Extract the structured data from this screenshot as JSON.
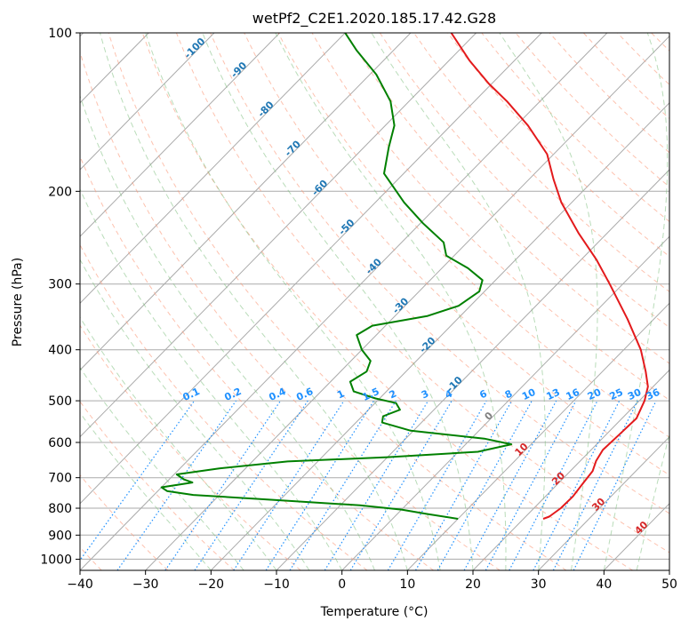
{
  "chart_data": {
    "type": "line",
    "title": "wetPf2_C2E1.2020.185.17.42.G28",
    "xlabel": "Temperature (°C)",
    "ylabel": "Pressure (hPa)",
    "xlim": [
      -40,
      50
    ],
    "ylim_hpa": [
      1050,
      100
    ],
    "y_scale": "log",
    "skew": true,
    "grid": true,
    "x_ticks": [
      "−40",
      "−30",
      "−20",
      "−10",
      "0",
      "10",
      "20",
      "30",
      "40",
      "50"
    ],
    "x_tick_values": [
      -40,
      -30,
      -20,
      -10,
      0,
      10,
      20,
      30,
      40,
      50
    ],
    "y_ticks": [
      "100",
      "200",
      "300",
      "400",
      "500",
      "600",
      "700",
      "800",
      "900",
      "1000"
    ],
    "y_tick_values": [
      100,
      200,
      300,
      400,
      500,
      600,
      700,
      800,
      900,
      1000
    ],
    "isotherm_labels": [
      {
        "text": "-100",
        "value": -100
      },
      {
        "text": "-90",
        "value": -90
      },
      {
        "text": "-80",
        "value": -80
      },
      {
        "text": "-70",
        "value": -70
      },
      {
        "text": "-60",
        "value": -60
      },
      {
        "text": "-50",
        "value": -50
      },
      {
        "text": "-40",
        "value": -40
      },
      {
        "text": "-30",
        "value": -30
      },
      {
        "text": "-20",
        "value": -20
      },
      {
        "text": "-10",
        "value": -10
      },
      {
        "text": "0",
        "value": 0
      },
      {
        "text": "10",
        "value": 10
      },
      {
        "text": "20",
        "value": 20
      },
      {
        "text": "30",
        "value": 30
      },
      {
        "text": "40",
        "value": 40
      }
    ],
    "mixing_ratio_labels": [
      "0.1",
      "0.2",
      "0.4",
      "0.6",
      "1",
      "1.5",
      "2",
      "3",
      "4",
      "6",
      "8",
      "10",
      "13",
      "16",
      "20",
      "25",
      "30",
      "36"
    ],
    "mixing_ratio_values": [
      0.1,
      0.2,
      0.4,
      0.6,
      1,
      1.5,
      2,
      3,
      4,
      6,
      8,
      10,
      13,
      16,
      20,
      25,
      30,
      36
    ],
    "series": [
      {
        "role": "temperature",
        "color": "#e31a1c",
        "points": [
          {
            "p": 838,
            "t": 23.0
          },
          {
            "p": 830,
            "t": 23.6
          },
          {
            "p": 800,
            "t": 24.1
          },
          {
            "p": 760,
            "t": 24.2
          },
          {
            "p": 720,
            "t": 23.8
          },
          {
            "p": 680,
            "t": 23.4
          },
          {
            "p": 650,
            "t": 22.4
          },
          {
            "p": 620,
            "t": 21.8
          },
          {
            "p": 580,
            "t": 22.0
          },
          {
            "p": 540,
            "t": 22.2
          },
          {
            "p": 500,
            "t": 20.8
          },
          {
            "p": 470,
            "t": 19.2
          },
          {
            "p": 440,
            "t": 16.6
          },
          {
            "p": 400,
            "t": 12.6
          },
          {
            "p": 350,
            "t": 6.0
          },
          {
            "p": 300,
            "t": -2.0
          },
          {
            "p": 270,
            "t": -7.6
          },
          {
            "p": 240,
            "t": -14.4
          },
          {
            "p": 210,
            "t": -21.6
          },
          {
            "p": 190,
            "t": -26.2
          },
          {
            "p": 170,
            "t": -31.0
          },
          {
            "p": 150,
            "t": -38.2
          },
          {
            "p": 135,
            "t": -45.0
          },
          {
            "p": 125,
            "t": -50.4
          },
          {
            "p": 113,
            "t": -56.8
          },
          {
            "p": 100,
            "t": -63.8
          }
        ]
      },
      {
        "role": "dewpoint",
        "color": "#008000",
        "points": [
          {
            "p": 838,
            "t": 10.0
          },
          {
            "p": 820,
            "t": 4.4
          },
          {
            "p": 805,
            "t": 0.0
          },
          {
            "p": 790,
            "t": -7.0
          },
          {
            "p": 770,
            "t": -22.0
          },
          {
            "p": 755,
            "t": -34.0
          },
          {
            "p": 742,
            "t": -38.6
          },
          {
            "p": 730,
            "t": -40.0
          },
          {
            "p": 715,
            "t": -36.0
          },
          {
            "p": 705,
            "t": -37.8
          },
          {
            "p": 690,
            "t": -39.6
          },
          {
            "p": 672,
            "t": -34.0
          },
          {
            "p": 652,
            "t": -24.6
          },
          {
            "p": 640,
            "t": -10.0
          },
          {
            "p": 625,
            "t": 3.0
          },
          {
            "p": 605,
            "t": 7.0
          },
          {
            "p": 590,
            "t": 2.0
          },
          {
            "p": 570,
            "t": -10.4
          },
          {
            "p": 550,
            "t": -16.0
          },
          {
            "p": 535,
            "t": -16.8
          },
          {
            "p": 520,
            "t": -15.2
          },
          {
            "p": 505,
            "t": -16.8
          },
          {
            "p": 495,
            "t": -20.6
          },
          {
            "p": 480,
            "t": -25.0
          },
          {
            "p": 460,
            "t": -27.0
          },
          {
            "p": 440,
            "t": -26.0
          },
          {
            "p": 420,
            "t": -27.0
          },
          {
            "p": 400,
            "t": -30.0
          },
          {
            "p": 375,
            "t": -33.0
          },
          {
            "p": 360,
            "t": -32.0
          },
          {
            "p": 345,
            "t": -25.0
          },
          {
            "p": 330,
            "t": -21.8
          },
          {
            "p": 310,
            "t": -20.8
          },
          {
            "p": 295,
            "t": -22.0
          },
          {
            "p": 280,
            "t": -26.0
          },
          {
            "p": 265,
            "t": -31.2
          },
          {
            "p": 250,
            "t": -33.6
          },
          {
            "p": 230,
            "t": -39.6
          },
          {
            "p": 210,
            "t": -45.6
          },
          {
            "p": 185,
            "t": -53.0
          },
          {
            "p": 165,
            "t": -56.2
          },
          {
            "p": 150,
            "t": -58.6
          },
          {
            "p": 135,
            "t": -62.8
          },
          {
            "p": 120,
            "t": -69.0
          },
          {
            "p": 108,
            "t": -75.6
          },
          {
            "p": 100,
            "t": -80.0
          }
        ]
      }
    ]
  },
  "colors": {
    "temperature": "#e31a1c",
    "dewpoint": "#008000",
    "isotherm_label": "#d62728",
    "dry_adiabat_label": "#1f77b4",
    "mixing_ratio": "#1e90ff",
    "grid": "#aaaaaa"
  }
}
